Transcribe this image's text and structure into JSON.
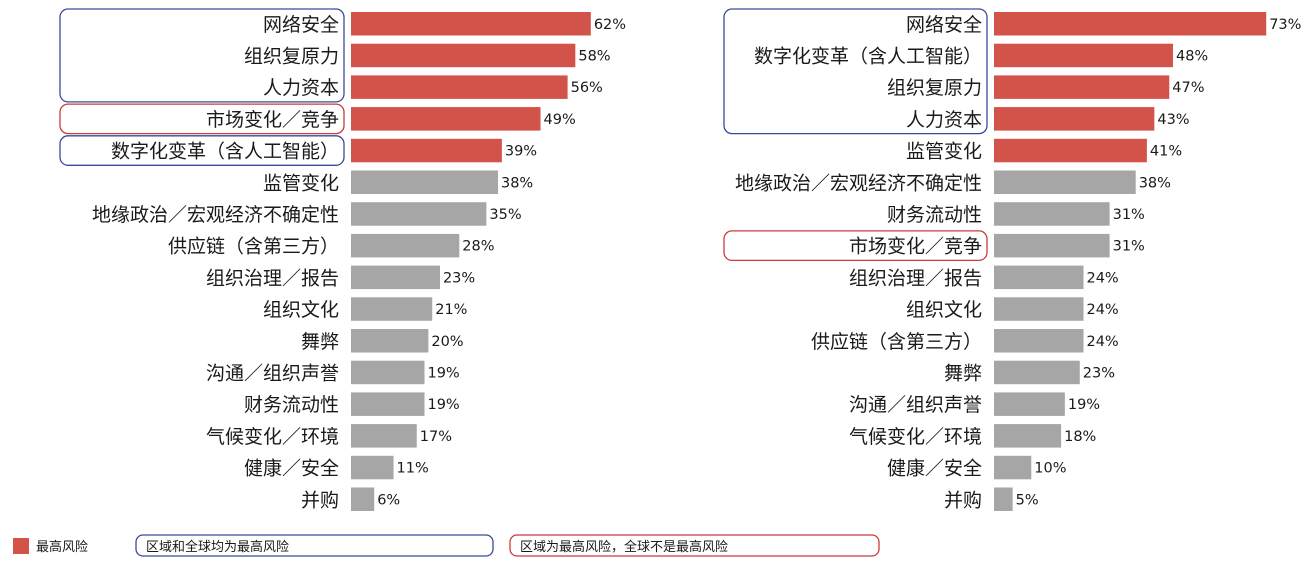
{
  "colors": {
    "top_risk": "#d2534a",
    "other": "#a6a6a6",
    "box_blue": "#3a4a9a",
    "box_red": "#cc3b3b"
  },
  "chart_data": [
    {
      "type": "bar",
      "orientation": "horizontal",
      "xlim": [
        0,
        100
      ],
      "categories": [
        "网络安全",
        "组织复原力",
        "人力资本",
        "市场变化／竞争",
        "数字化变革（含人工智能）",
        "监管变化",
        "地缘政治／宏观经济不确定性",
        "供应链（含第三方）",
        "组织治理／报告",
        "组织文化",
        "舞弊",
        "沟通／组织声誉",
        "财务流动性",
        "气候变化／环境",
        "健康／安全",
        "并购"
      ],
      "values": [
        62,
        58,
        56,
        49,
        39,
        38,
        35,
        28,
        23,
        21,
        20,
        19,
        19,
        17,
        11,
        6
      ],
      "labels": [
        "62%",
        "58%",
        "56%",
        "49%",
        "39%",
        "38%",
        "35%",
        "28%",
        "23%",
        "21%",
        "20%",
        "19%",
        "19%",
        "17%",
        "11%",
        "6%"
      ],
      "highlight_top_risk": [
        true,
        true,
        true,
        true,
        true,
        false,
        false,
        false,
        false,
        false,
        false,
        false,
        false,
        false,
        false,
        false
      ],
      "groups": [
        {
          "style": "blue",
          "start": 0,
          "end": 2
        },
        {
          "style": "red",
          "start": 3,
          "end": 3
        },
        {
          "style": "blue",
          "start": 4,
          "end": 4
        }
      ]
    },
    {
      "type": "bar",
      "orientation": "horizontal",
      "xlim": [
        0,
        100
      ],
      "categories": [
        "网络安全",
        "数字化变革（含人工智能）",
        "组织复原力",
        "人力资本",
        "监管变化",
        "地缘政治／宏观经济不确定性",
        "财务流动性",
        "市场变化／竞争",
        "组织治理／报告",
        "组织文化",
        "供应链（含第三方）",
        "舞弊",
        "沟通／组织声誉",
        "气候变化／环境",
        "健康／安全",
        "并购"
      ],
      "values": [
        73,
        48,
        47,
        43,
        41,
        38,
        31,
        31,
        24,
        24,
        24,
        23,
        19,
        18,
        10,
        5
      ],
      "labels": [
        "73%",
        "48%",
        "47%",
        "43%",
        "41%",
        "38%",
        "31%",
        "31%",
        "24%",
        "24%",
        "24%",
        "23%",
        "19%",
        "18%",
        "10%",
        "5%"
      ],
      "highlight_top_risk": [
        true,
        true,
        true,
        true,
        true,
        false,
        false,
        false,
        false,
        false,
        false,
        false,
        false,
        false,
        false,
        false
      ],
      "groups": [
        {
          "style": "blue",
          "start": 0,
          "end": 3
        },
        {
          "style": "red",
          "start": 7,
          "end": 7
        }
      ]
    }
  ],
  "legend": {
    "top_risk": "最高风险",
    "both_top": "区域和全球均为最高风险",
    "region_only": "区域为最高风险，全球不是最高风险"
  }
}
